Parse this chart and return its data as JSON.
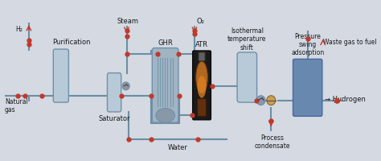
{
  "bg_color": "#d4d9e2",
  "pipe_color": "#6b8fa5",
  "pipe_lw": 1.5,
  "node_color": "#c0392b",
  "vessel_face": "#b8cad8",
  "vessel_edge": "#7090a8",
  "ghr_face": "#a0b4c4",
  "ghr_stripe": "#7898ac",
  "ghr_dome": "#8898a8",
  "atr_outer": "#1a1a1a",
  "atr_body": "#b06820",
  "atr_flame": "#e08020",
  "atr_tip": "#603010",
  "psa_color": "#6888b0",
  "psa_edge": "#4868a0",
  "pump_face": "#9090a0",
  "heat_ex_face": "#c8a050",
  "heat_ex_edge": "#906030",
  "labels": {
    "natural_gas": "Natural\ngas",
    "h2": "H₂",
    "purification": "Purification",
    "steam": "Steam",
    "saturator": "Saturator",
    "ghr": "GHR",
    "atr": "ATR",
    "o2": "O₂",
    "isothermal": "Isothermal\ntemperature\nshift",
    "pressure_swing": "Pressure\nswing\nadsorption",
    "waste_gas": "Waste gas to fuel",
    "process_cond": "Process\ncondensate",
    "water": "Water",
    "hydrogen": "→ Hydrogen"
  },
  "fs": 5.5,
  "fs_label": 6.0
}
